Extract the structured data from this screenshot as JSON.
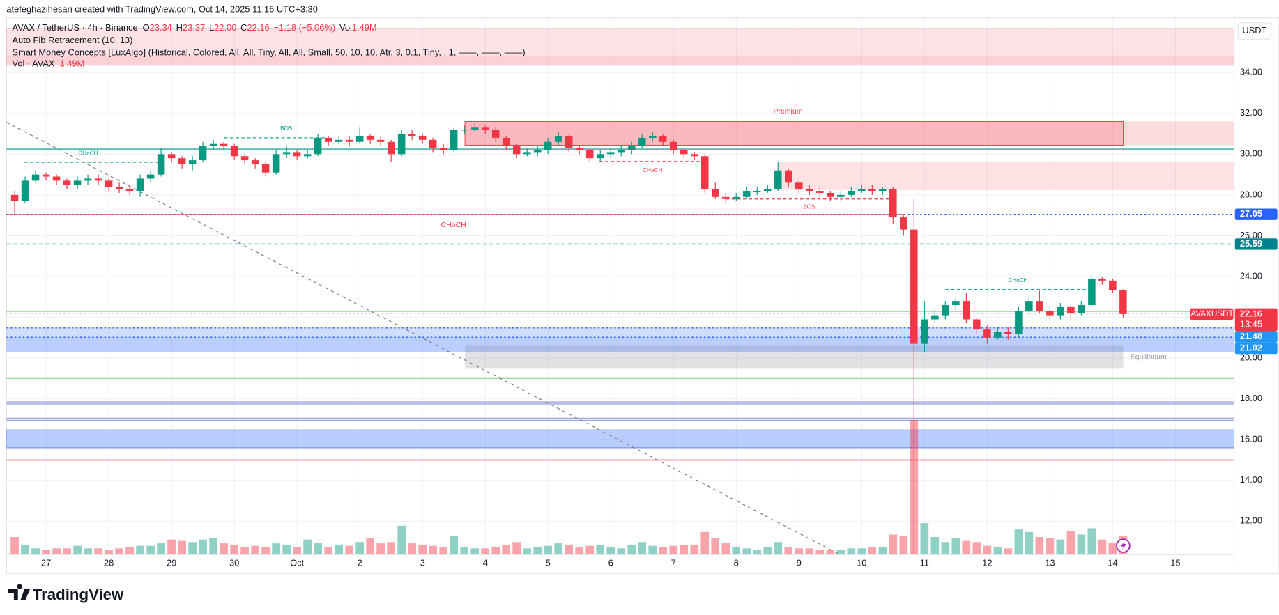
{
  "chart_data": {
    "type": "candlestick",
    "watermark": "atefeghazihesari created with TradingView.com, Oct 14, 2025 11:16 UTC+3:30",
    "symbol": "AVAX / TetherUS · 4h · Binance",
    "ohlc": [
      {
        "label": "O",
        "value": "23.34"
      },
      {
        "label": "H",
        "value": "23.37"
      },
      {
        "label": "L",
        "value": "22.00"
      },
      {
        "label": "C",
        "value": "22.16"
      }
    ],
    "change": "−1.18 (−5.06%)",
    "volume_legend": {
      "label": "Vol",
      "value": "1.49M"
    },
    "indicators": [
      "Auto Fib Retracement (10, 13)",
      "Smart Money Concepts [LuxAlgo] (Historical, Colored, All, All, Tiny, All, All, Small, 50, 10, 10, Atr, 3, 0.1, Tiny, , 1, ——, ——, ——)"
    ],
    "volume_pane": {
      "label": "Vol · AVAX",
      "value": "1.49M"
    },
    "currency": "USDT",
    "x_labels": [
      "27",
      "28",
      "29",
      "30",
      "Oct",
      "2",
      "3",
      "4",
      "5",
      "6",
      "7",
      "8",
      "9",
      "10",
      "11",
      "12",
      "13",
      "14",
      "15"
    ],
    "up_color": "#089981",
    "down_color": "#f23645",
    "open": [
      28.0,
      27.7,
      28.7,
      29.0,
      28.9,
      28.7,
      28.5,
      28.7,
      28.8,
      28.7,
      28.4,
      28.3,
      28.2,
      28.8,
      29.0,
      30.0,
      29.8,
      29.5,
      29.7,
      30.4,
      30.5,
      30.4,
      29.9,
      29.7,
      29.5,
      29.1,
      30.0,
      30.1,
      29.9,
      30.0,
      30.8,
      30.6,
      30.7,
      30.6,
      30.9,
      30.7,
      30.6,
      30.0,
      31.0,
      30.9,
      30.7,
      30.3,
      30.2,
      31.2,
      31.2,
      31.3,
      31.2,
      30.8,
      30.4,
      30.0,
      30.1,
      30.2,
      30.6,
      30.9,
      30.3,
      30.2,
      29.8,
      30.0,
      30.1,
      30.2,
      30.4,
      30.8,
      30.9,
      30.6,
      30.2,
      30.0,
      29.9,
      28.3,
      27.9,
      27.8,
      27.9,
      28.2,
      28.2,
      28.3,
      29.2,
      28.6,
      28.3,
      28.2,
      28.1,
      27.9,
      28.0,
      28.2,
      28.3,
      28.2,
      28.3,
      26.9,
      26.3,
      20.7,
      21.9,
      22.1,
      22.6,
      22.8,
      21.9,
      21.4,
      21.0,
      21.3,
      21.2,
      22.3,
      22.8,
      22.3,
      22.1,
      22.5,
      22.2,
      22.6,
      23.9,
      23.8,
      23.34
    ],
    "high": [
      28.2,
      28.9,
      29.2,
      29.1,
      29.0,
      28.8,
      28.9,
      29.0,
      29.0,
      28.8,
      28.6,
      28.5,
      29.0,
      29.2,
      30.3,
      30.1,
      29.9,
      29.9,
      30.6,
      30.7,
      30.6,
      30.5,
      30.0,
      29.8,
      29.6,
      30.2,
      30.4,
      30.2,
      30.2,
      31.0,
      30.9,
      30.9,
      30.9,
      31.3,
      31.0,
      30.9,
      30.7,
      31.2,
      31.2,
      31.0,
      30.8,
      30.5,
      31.3,
      31.4,
      31.5,
      31.4,
      31.3,
      30.9,
      30.5,
      30.3,
      30.4,
      30.8,
      31.1,
      31.0,
      30.4,
      30.3,
      30.2,
      30.3,
      30.4,
      30.6,
      31.0,
      31.1,
      31.0,
      30.7,
      30.3,
      30.1,
      30.0,
      28.6,
      28.1,
      28.1,
      28.4,
      28.4,
      28.5,
      29.6,
      29.3,
      28.7,
      28.5,
      28.4,
      28.2,
      28.2,
      28.4,
      28.5,
      28.5,
      28.4,
      28.4,
      27.0,
      27.8,
      22.8,
      22.4,
      22.8,
      23.0,
      23.2,
      22.0,
      21.6,
      21.5,
      21.5,
      22.5,
      23.1,
      23.3,
      22.5,
      22.7,
      22.6,
      22.8,
      24.1,
      24.0,
      23.9,
      23.37
    ],
    "low": [
      27.0,
      27.6,
      28.6,
      28.7,
      28.5,
      28.3,
      28.3,
      28.5,
      28.5,
      28.2,
      28.1,
      28.0,
      27.9,
      28.6,
      28.9,
      29.6,
      29.3,
      29.2,
      29.6,
      30.2,
      30.2,
      29.7,
      29.5,
      29.3,
      28.9,
      29.0,
      29.8,
      29.7,
      29.8,
      29.9,
      30.4,
      30.5,
      30.4,
      30.5,
      30.5,
      30.4,
      29.6,
      29.9,
      30.7,
      30.5,
      30.1,
      30.0,
      30.1,
      31.0,
      31.1,
      31.0,
      30.6,
      30.2,
      29.8,
      29.9,
      29.9,
      30.0,
      30.4,
      30.1,
      30.0,
      29.6,
      29.6,
      29.8,
      29.9,
      30.0,
      30.3,
      30.6,
      30.4,
      30.0,
      29.8,
      29.7,
      28.1,
      27.8,
      27.6,
      27.7,
      27.8,
      28.0,
      28.1,
      28.2,
      28.4,
      28.1,
      28.0,
      27.9,
      27.7,
      27.7,
      27.9,
      28.1,
      28.0,
      28.0,
      26.6,
      26.0,
      10.4,
      20.3,
      21.7,
      21.9,
      22.3,
      21.7,
      21.2,
      20.7,
      20.9,
      20.9,
      21.0,
      22.1,
      22.2,
      21.9,
      21.9,
      21.8,
      22.1,
      22.5,
      23.6,
      23.2,
      22.0
    ],
    "close": [
      27.7,
      28.7,
      29.0,
      28.9,
      28.7,
      28.5,
      28.7,
      28.8,
      28.7,
      28.4,
      28.3,
      28.2,
      28.8,
      29.0,
      30.0,
      29.8,
      29.5,
      29.7,
      30.4,
      30.5,
      30.4,
      29.9,
      29.7,
      29.5,
      29.1,
      30.0,
      30.1,
      29.9,
      30.0,
      30.8,
      30.6,
      30.7,
      30.6,
      30.9,
      30.7,
      30.6,
      30.0,
      31.0,
      30.9,
      30.7,
      30.3,
      30.2,
      31.2,
      31.2,
      31.3,
      31.2,
      30.8,
      30.4,
      30.0,
      30.1,
      30.2,
      30.6,
      30.9,
      30.3,
      30.2,
      29.8,
      30.0,
      30.1,
      30.2,
      30.4,
      30.8,
      30.9,
      30.6,
      30.2,
      30.0,
      29.9,
      28.3,
      27.9,
      27.8,
      27.9,
      28.2,
      28.2,
      28.3,
      29.2,
      28.6,
      28.3,
      28.2,
      28.1,
      27.9,
      28.0,
      28.2,
      28.3,
      28.2,
      28.3,
      26.9,
      26.3,
      20.7,
      21.9,
      22.1,
      22.6,
      22.8,
      21.9,
      21.4,
      21.0,
      21.3,
      21.2,
      22.3,
      22.8,
      22.3,
      22.1,
      22.5,
      22.2,
      22.6,
      23.9,
      23.8,
      23.34,
      22.16
    ],
    "volume": [
      1.4,
      0.8,
      0.5,
      0.4,
      0.5,
      0.5,
      0.7,
      0.5,
      0.5,
      0.4,
      0.5,
      0.6,
      0.7,
      0.7,
      0.9,
      1.2,
      1.1,
      1.0,
      1.2,
      1.3,
      0.9,
      0.8,
      0.6,
      0.7,
      0.6,
      0.9,
      0.8,
      0.6,
      1.2,
      0.9,
      0.6,
      0.8,
      0.7,
      1.0,
      1.3,
      0.9,
      1.0,
      2.3,
      0.9,
      0.8,
      0.7,
      0.6,
      1.5,
      0.6,
      0.5,
      0.5,
      0.6,
      0.8,
      1.0,
      0.5,
      0.6,
      0.7,
      0.9,
      0.8,
      0.6,
      0.7,
      0.8,
      0.6,
      0.5,
      0.8,
      1.0,
      0.7,
      0.6,
      0.7,
      0.8,
      0.8,
      1.8,
      1.3,
      0.9,
      0.6,
      0.5,
      0.4,
      0.6,
      1.0,
      0.6,
      0.5,
      0.5,
      0.4,
      0.4,
      0.4,
      0.5,
      0.5,
      0.6,
      0.6,
      1.6,
      1.5,
      10.7,
      2.5,
      1.4,
      1.0,
      1.3,
      1.1,
      1.0,
      0.7,
      0.6,
      0.5,
      2.0,
      1.8,
      1.4,
      1.3,
      1.2,
      1.9,
      1.6,
      2.1,
      1.2,
      0.9,
      1.49
    ],
    "ylim": [
      9.44,
      36.68
    ],
    "yticks": [
      {
        "value": 34,
        "label": "34.00"
      },
      {
        "value": 32,
        "label": "32.00"
      },
      {
        "value": 30,
        "label": "30.00"
      },
      {
        "value": 28,
        "label": "28.00"
      },
      {
        "value": 26,
        "label": "26.00"
      },
      {
        "value": 24,
        "label": "24.00"
      },
      {
        "value": 22,
        "label": "22.00"
      },
      {
        "value": 20,
        "label": "20.00"
      },
      {
        "value": 18,
        "label": "18.00"
      },
      {
        "value": 16,
        "label": "16.00"
      },
      {
        "value": 14,
        "label": "14.00"
      },
      {
        "value": 12,
        "label": "12.00"
      }
    ],
    "grid": true,
    "levels": [
      {
        "value": 30.25,
        "color": "#26a69a",
        "style": "solid"
      },
      {
        "value": 27.05,
        "color": "#2962ff",
        "style": "dotted"
      },
      {
        "value": 25.59,
        "color": "#00838f",
        "style": "dashed"
      },
      {
        "value": 22.3,
        "color": "#66bb6a",
        "style": "solid"
      },
      {
        "value": 22.2,
        "color": "#a1887f",
        "style": "dotted"
      },
      {
        "value": 21.48,
        "color": "#2962ff",
        "style": "dotted"
      },
      {
        "value": 21.02,
        "color": "#2962ff",
        "style": "dotted"
      },
      {
        "value": 19.0,
        "color": "#a5d6a7",
        "style": "solid"
      },
      {
        "value": 17.85,
        "color": "#9fa8da",
        "style": "solid"
      },
      {
        "value": 17.75,
        "color": "#9fa8da",
        "style": "solid"
      },
      {
        "value": 17.05,
        "color": "#9fa8da",
        "style": "solid"
      },
      {
        "value": 16.95,
        "color": "#9fa8da",
        "style": "solid"
      },
      {
        "value": 15.0,
        "color": "#f23645",
        "style": "solid"
      }
    ],
    "price_tags": [
      {
        "value": 27.05,
        "color": "#2962ff"
      },
      {
        "value": 25.59,
        "color": "#00838f"
      },
      {
        "value": 22.16,
        "color": "#f23645",
        "symbol": "AVAXUSDT",
        "countdown": "13:45"
      },
      {
        "value": 21.48,
        "color": "#2196f3"
      },
      {
        "value": 21.02,
        "color": "#2196f3"
      }
    ],
    "annotations": [
      "Premium",
      "CHoCH",
      "CHoCH",
      "CHoCH",
      "CHoCH",
      "BOS",
      "BOS",
      "Equilibrium"
    ],
    "brand": "TradingView"
  }
}
